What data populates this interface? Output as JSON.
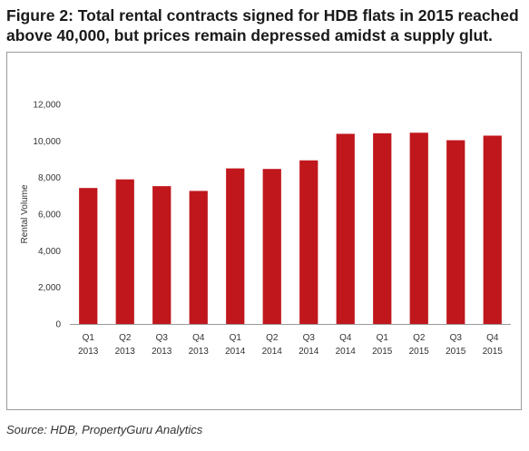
{
  "title": "Figure 2: Total rental contracts signed for HDB flats in 2015 reached above 40,000, but prices remain depressed amidst a supply glut.",
  "source": "Source: HDB, PropertyGuru Analytics",
  "colors": {
    "bar": "#c0171d",
    "axis": "#999999"
  },
  "chart_data": {
    "type": "bar",
    "title": "",
    "xlabel": "",
    "ylabel": "Rental Volume",
    "ylim": [
      0,
      12000
    ],
    "yticks": [
      0,
      2000,
      4000,
      6000,
      8000,
      10000,
      12000
    ],
    "ytick_labels": [
      "0",
      "2,000",
      "4,000",
      "6,000",
      "8,000",
      "10,000",
      "12,000"
    ],
    "categories": [
      [
        "Q1",
        "2013"
      ],
      [
        "Q2",
        "2013"
      ],
      [
        "Q3",
        "2013"
      ],
      [
        "Q4",
        "2013"
      ],
      [
        "Q1",
        "2014"
      ],
      [
        "Q2",
        "2014"
      ],
      [
        "Q3",
        "2014"
      ],
      [
        "Q4",
        "2014"
      ],
      [
        "Q1",
        "2015"
      ],
      [
        "Q2",
        "2015"
      ],
      [
        "Q3",
        "2015"
      ],
      [
        "Q4",
        "2015"
      ]
    ],
    "values": [
      7430,
      7900,
      7530,
      7270,
      8500,
      8470,
      8940,
      10390,
      10420,
      10450,
      10040,
      10290
    ],
    "grid": false,
    "legend": "none"
  }
}
